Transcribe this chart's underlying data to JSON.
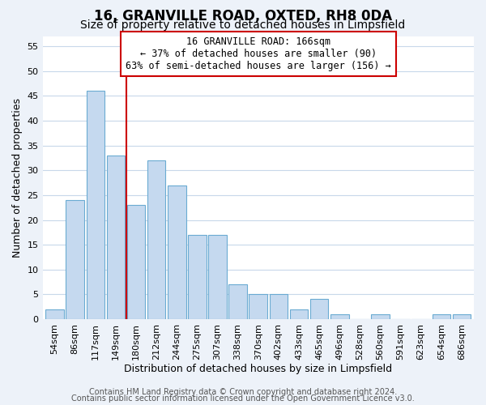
{
  "title": "16, GRANVILLE ROAD, OXTED, RH8 0DA",
  "subtitle": "Size of property relative to detached houses in Limpsfield",
  "xlabel": "Distribution of detached houses by size in Limpsfield",
  "ylabel": "Number of detached properties",
  "bar_labels": [
    "54sqm",
    "86sqm",
    "117sqm",
    "149sqm",
    "180sqm",
    "212sqm",
    "244sqm",
    "275sqm",
    "307sqm",
    "338sqm",
    "370sqm",
    "402sqm",
    "433sqm",
    "465sqm",
    "496sqm",
    "528sqm",
    "560sqm",
    "591sqm",
    "623sqm",
    "654sqm",
    "686sqm"
  ],
  "bar_values": [
    2,
    24,
    46,
    33,
    23,
    32,
    27,
    17,
    17,
    7,
    5,
    5,
    2,
    4,
    1,
    0,
    1,
    0,
    0,
    1,
    1
  ],
  "bar_color": "#c5d9ef",
  "bar_edge_color": "#6aabd2",
  "vline_x": 3.5,
  "vline_color": "#cc0000",
  "annotation_text": "16 GRANVILLE ROAD: 166sqm\n← 37% of detached houses are smaller (90)\n63% of semi-detached houses are larger (156) →",
  "ylim": [
    0,
    57
  ],
  "yticks": [
    0,
    5,
    10,
    15,
    20,
    25,
    30,
    35,
    40,
    45,
    50,
    55
  ],
  "footer_line1": "Contains HM Land Registry data © Crown copyright and database right 2024.",
  "footer_line2": "Contains public sector information licensed under the Open Government Licence v3.0.",
  "bg_color": "#edf2f9",
  "plot_bg_color": "#ffffff",
  "grid_color": "#c8d8ea",
  "title_fontsize": 12,
  "subtitle_fontsize": 10,
  "axis_label_fontsize": 9,
  "tick_fontsize": 8,
  "footer_fontsize": 7
}
